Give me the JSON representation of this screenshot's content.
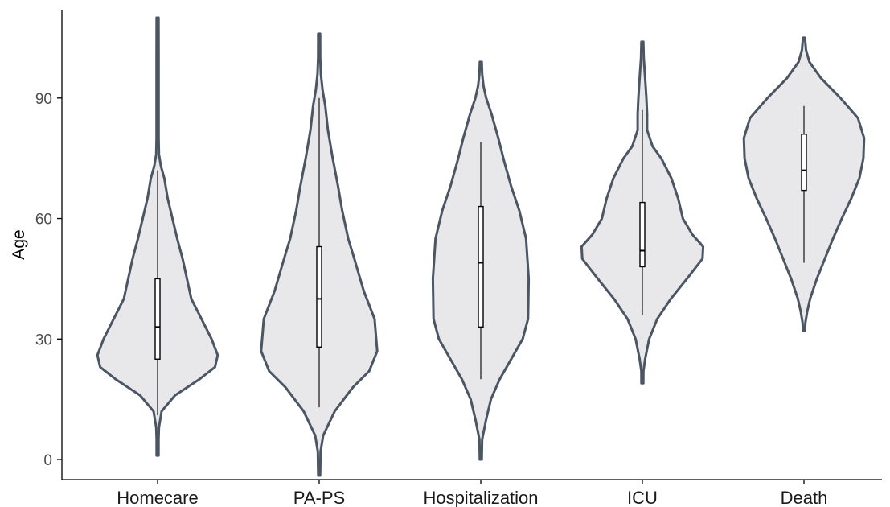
{
  "chart_data": {
    "type": "violin",
    "title": "",
    "xlabel": "",
    "ylabel": "Age",
    "ylim": [
      -5,
      112
    ],
    "yticks": [
      0,
      30,
      60,
      90
    ],
    "grid": false,
    "colors": {
      "violin_fill": "#e8e8eb",
      "violin_outline": "#4b5563",
      "box_fill": "#ffffff",
      "box_outline": "#000000",
      "axis": "#000000",
      "tick_label": "#4d4d4d"
    },
    "categories": [
      "Homecare",
      "PA-PS",
      "Hospitalization",
      "ICU",
      "Death"
    ],
    "series": [
      {
        "category": "Homecare",
        "violin_min": 1,
        "violin_max": 110,
        "density": [
          [
            1,
            0.0
          ],
          [
            5,
            0.008
          ],
          [
            8,
            0.02
          ],
          [
            12,
            0.06
          ],
          [
            16,
            0.26
          ],
          [
            20,
            0.62
          ],
          [
            23,
            0.85
          ],
          [
            26,
            0.89
          ],
          [
            30,
            0.8
          ],
          [
            35,
            0.65
          ],
          [
            40,
            0.5
          ],
          [
            50,
            0.37
          ],
          [
            55,
            0.29
          ],
          [
            60,
            0.22
          ],
          [
            65,
            0.15
          ],
          [
            70,
            0.1
          ],
          [
            73,
            0.05
          ],
          [
            76,
            0.02
          ],
          [
            80,
            0.015
          ],
          [
            90,
            0.015
          ],
          [
            100,
            0.015
          ],
          [
            110,
            0.0
          ]
        ],
        "box": {
          "lower_whisker": 11,
          "q1": 25,
          "median": 33,
          "q3": 45,
          "upper_whisker": 72
        }
      },
      {
        "category": "PA-PS",
        "violin_min": -4,
        "violin_max": 106,
        "density": [
          [
            -4,
            0.0
          ],
          [
            2,
            0.02
          ],
          [
            6,
            0.06
          ],
          [
            12,
            0.23
          ],
          [
            18,
            0.5
          ],
          [
            22,
            0.74
          ],
          [
            27,
            0.86
          ],
          [
            35,
            0.82
          ],
          [
            42,
            0.66
          ],
          [
            50,
            0.52
          ],
          [
            55,
            0.43
          ],
          [
            62,
            0.34
          ],
          [
            68,
            0.28
          ],
          [
            75,
            0.2
          ],
          [
            82,
            0.13
          ],
          [
            88,
            0.09
          ],
          [
            92,
            0.05
          ],
          [
            96,
            0.025
          ],
          [
            100,
            0.015
          ],
          [
            106,
            0.0
          ]
        ],
        "box": {
          "lower_whisker": 13,
          "q1": 28,
          "median": 40,
          "q3": 53,
          "upper_whisker": 90
        }
      },
      {
        "category": "Hospitalization",
        "violin_min": 0,
        "violin_max": 99,
        "density": [
          [
            0,
            0.0
          ],
          [
            5,
            0.02
          ],
          [
            10,
            0.08
          ],
          [
            15,
            0.15
          ],
          [
            20,
            0.28
          ],
          [
            25,
            0.45
          ],
          [
            30,
            0.62
          ],
          [
            35,
            0.7
          ],
          [
            45,
            0.71
          ],
          [
            55,
            0.67
          ],
          [
            62,
            0.57
          ],
          [
            68,
            0.45
          ],
          [
            74,
            0.35
          ],
          [
            80,
            0.26
          ],
          [
            86,
            0.16
          ],
          [
            90,
            0.08
          ],
          [
            93,
            0.04
          ],
          [
            96,
            0.02
          ],
          [
            99,
            0.0
          ]
        ],
        "box": {
          "lower_whisker": 20,
          "q1": 33,
          "median": 49,
          "q3": 63,
          "upper_whisker": 79
        }
      },
      {
        "category": "ICU",
        "violin_min": 19,
        "violin_max": 104,
        "density": [
          [
            19,
            0.0
          ],
          [
            22,
            0.015
          ],
          [
            25,
            0.04
          ],
          [
            30,
            0.1
          ],
          [
            35,
            0.22
          ],
          [
            40,
            0.42
          ],
          [
            45,
            0.66
          ],
          [
            50,
            0.89
          ],
          [
            53,
            0.9
          ],
          [
            56,
            0.74
          ],
          [
            60,
            0.6
          ],
          [
            65,
            0.53
          ],
          [
            70,
            0.43
          ],
          [
            75,
            0.28
          ],
          [
            78,
            0.15
          ],
          [
            82,
            0.07
          ],
          [
            86,
            0.07
          ],
          [
            90,
            0.06
          ],
          [
            95,
            0.04
          ],
          [
            100,
            0.02
          ],
          [
            104,
            0.0
          ]
        ],
        "box": {
          "lower_whisker": 36,
          "q1": 48,
          "median": 52,
          "q3": 64,
          "upper_whisker": 87
        }
      },
      {
        "category": "Death",
        "violin_min": 32,
        "violin_max": 105,
        "density": [
          [
            32,
            0.0
          ],
          [
            34,
            0.02
          ],
          [
            37,
            0.05
          ],
          [
            40,
            0.09
          ],
          [
            45,
            0.19
          ],
          [
            50,
            0.31
          ],
          [
            55,
            0.43
          ],
          [
            60,
            0.56
          ],
          [
            65,
            0.7
          ],
          [
            70,
            0.82
          ],
          [
            75,
            0.88
          ],
          [
            80,
            0.89
          ],
          [
            85,
            0.8
          ],
          [
            90,
            0.54
          ],
          [
            95,
            0.25
          ],
          [
            99,
            0.08
          ],
          [
            102,
            0.03
          ],
          [
            105,
            0.0
          ]
        ],
        "box": {
          "lower_whisker": 49,
          "q1": 67,
          "median": 72,
          "q3": 81,
          "upper_whisker": 88
        }
      }
    ]
  }
}
